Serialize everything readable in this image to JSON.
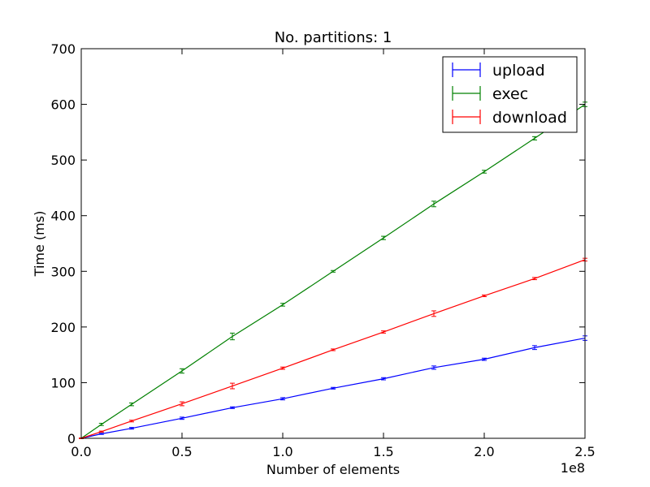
{
  "chart_data": {
    "type": "line",
    "title": "No. partitions: 1",
    "xlabel": "Number of elements",
    "ylabel": "Time (ms)",
    "x_offset_label": "1e8",
    "xlim": [
      0,
      2.5
    ],
    "ylim": [
      0,
      700
    ],
    "x_ticks": [
      0.0,
      0.5,
      1.0,
      1.5,
      2.0,
      2.5
    ],
    "x_tick_labels": [
      "0.0",
      "0.5",
      "1.0",
      "1.5",
      "2.0",
      "2.5"
    ],
    "y_ticks": [
      0,
      100,
      200,
      300,
      400,
      500,
      600,
      700
    ],
    "y_tick_labels": [
      "0",
      "100",
      "200",
      "300",
      "400",
      "500",
      "600",
      "700"
    ],
    "grid": false,
    "legend_position": "top-right",
    "x": [
      0.0,
      0.1,
      0.25,
      0.5,
      0.75,
      1.0,
      1.25,
      1.5,
      1.75,
      2.0,
      2.25,
      2.5
    ],
    "series": [
      {
        "name": "upload",
        "color": "#0000ff",
        "values": [
          0,
          8,
          18,
          36,
          55,
          71,
          90,
          107,
          127,
          142,
          163,
          180
        ],
        "errors": [
          0.5,
          1,
          1.5,
          2,
          1.5,
          2,
          1.5,
          2,
          3,
          2,
          3.5,
          4
        ]
      },
      {
        "name": "exec",
        "color": "#008000",
        "values": [
          0,
          25,
          61,
          121,
          183,
          240,
          300,
          360,
          421,
          479,
          539,
          600
        ],
        "errors": [
          0.5,
          2,
          2.5,
          4,
          6,
          2.5,
          1.5,
          3,
          5,
          2.5,
          3,
          4
        ]
      },
      {
        "name": "download",
        "color": "#ff0000",
        "values": [
          0,
          12,
          31,
          62,
          94,
          126,
          159,
          191,
          224,
          256,
          287,
          321
        ],
        "errors": [
          0.5,
          1,
          1.5,
          3.5,
          5,
          2,
          1.5,
          2,
          5,
          1.5,
          2,
          2.5
        ]
      }
    ]
  }
}
